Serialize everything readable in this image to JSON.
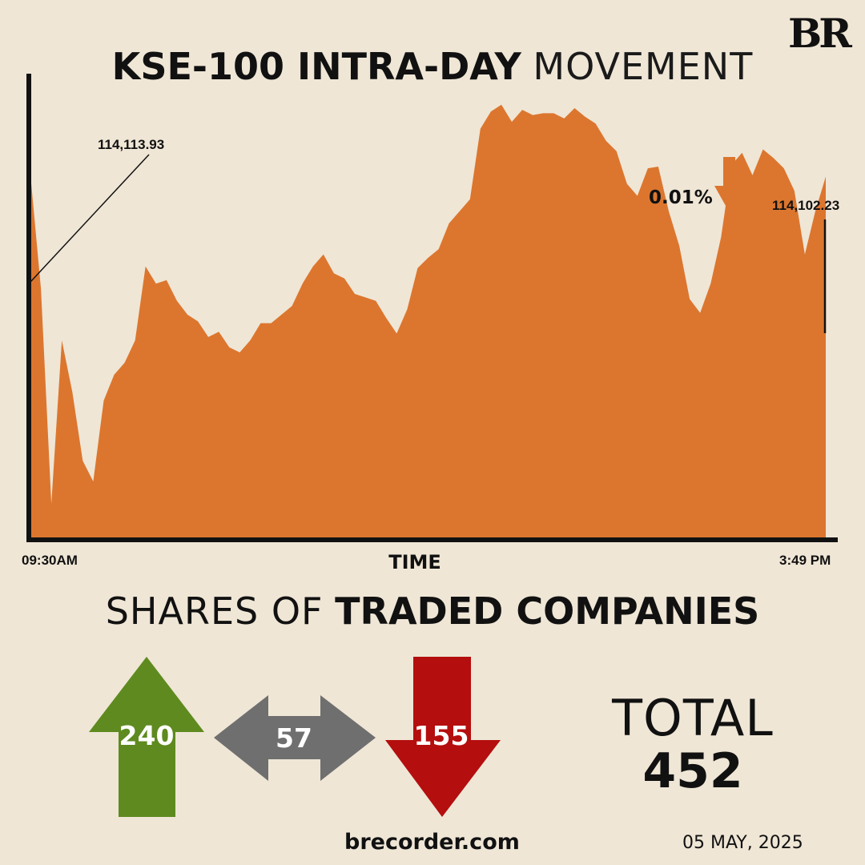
{
  "brand": {
    "logo_text": "BR",
    "site": "brecorder.com",
    "date": "05 MAY, 2025"
  },
  "title": {
    "bold": "KSE-100 INTRA-DAY",
    "light": "MOVEMENT"
  },
  "chart_data": {
    "type": "area",
    "title": "KSE-100 INTRA-DAY MOVEMENT",
    "xlabel": "TIME",
    "ylabel": "",
    "x_start_label": "09:30AM",
    "x_end_label": "3:49 PM",
    "open_value": "114,113.93",
    "close_value": "114,102.23",
    "change_label": "0.01%",
    "change_direction": "down",
    "ylim": [
      112000,
      114700
    ],
    "x": [
      "09:30",
      "09:35",
      "09:40",
      "09:45",
      "09:50",
      "09:55",
      "10:00",
      "10:05",
      "10:10",
      "10:15",
      "10:20",
      "10:25",
      "10:30",
      "10:35",
      "10:40",
      "10:45",
      "10:50",
      "10:55",
      "11:00",
      "11:05",
      "11:10",
      "11:15",
      "11:20",
      "11:25",
      "11:30",
      "11:35",
      "11:40",
      "11:45",
      "11:50",
      "11:55",
      "12:00",
      "12:05",
      "12:10",
      "12:15",
      "12:20",
      "12:25",
      "12:30",
      "12:35",
      "12:40",
      "12:45",
      "12:50",
      "12:55",
      "13:00",
      "13:05",
      "13:10",
      "13:15",
      "13:20",
      "13:25",
      "13:30",
      "13:35",
      "13:40",
      "13:45",
      "13:50",
      "13:55",
      "14:00",
      "14:05",
      "14:10",
      "14:15",
      "14:20",
      "14:25",
      "14:30",
      "14:35",
      "14:40",
      "14:45",
      "14:50",
      "14:55",
      "15:00",
      "15:05",
      "15:10",
      "15:15",
      "15:20",
      "15:25",
      "15:30",
      "15:35",
      "15:40",
      "15:45",
      "15:49"
    ],
    "values": [
      114114,
      113450,
      112200,
      113150,
      112850,
      112450,
      112330,
      112800,
      112950,
      113020,
      113150,
      113580,
      113480,
      113500,
      113380,
      113300,
      113260,
      113170,
      113200,
      113110,
      113080,
      113150,
      113250,
      113250,
      113300,
      113350,
      113480,
      113580,
      113650,
      113540,
      113510,
      113420,
      113400,
      113380,
      113280,
      113190,
      113330,
      113570,
      113630,
      113680,
      113830,
      113900,
      113970,
      114380,
      114480,
      114520,
      114420,
      114490,
      114460,
      114470,
      114470,
      114440,
      114500,
      114450,
      114410,
      114310,
      114250,
      114060,
      113990,
      114150,
      114160,
      113900,
      113700,
      113390,
      113310,
      113480,
      113750,
      114170,
      114240,
      114110,
      114260,
      114210,
      114150,
      114020,
      113650,
      113900,
      114102
    ],
    "shares": {
      "title_light": "SHARES OF",
      "title_bold": "TRADED COMPANIES",
      "advanced": 240,
      "unchanged": 57,
      "declined": 155,
      "total_label": "TOTAL",
      "total": 452
    }
  },
  "colors": {
    "background": "#efe6d6",
    "area": "#dc762e",
    "axis": "#111111",
    "down_arrow": "#dc762e",
    "advanced": "#5e8a1f",
    "unchanged": "#6f6f6f",
    "declined": "#b40e0e"
  }
}
